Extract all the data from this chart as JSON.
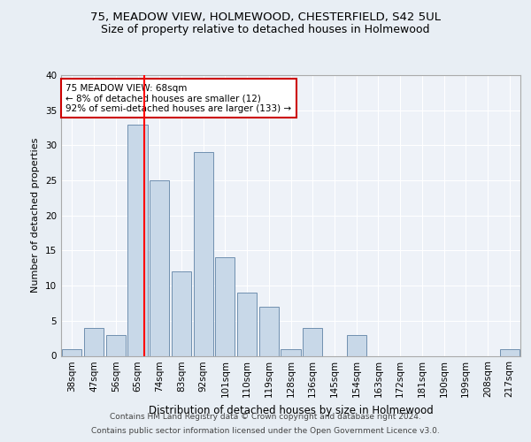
{
  "title_line1": "75, MEADOW VIEW, HOLMEWOOD, CHESTERFIELD, S42 5UL",
  "title_line2": "Size of property relative to detached houses in Holmewood",
  "xlabel": "Distribution of detached houses by size in Holmewood",
  "ylabel": "Number of detached properties",
  "categories": [
    "38sqm",
    "47sqm",
    "56sqm",
    "65sqm",
    "74sqm",
    "83sqm",
    "92sqm",
    "101sqm",
    "110sqm",
    "119sqm",
    "128sqm",
    "136sqm",
    "145sqm",
    "154sqm",
    "163sqm",
    "172sqm",
    "181sqm",
    "190sqm",
    "199sqm",
    "208sqm",
    "217sqm"
  ],
  "values": [
    1,
    4,
    3,
    33,
    25,
    12,
    29,
    14,
    9,
    7,
    1,
    4,
    0,
    3,
    0,
    0,
    0,
    0,
    0,
    0,
    1
  ],
  "bar_color": "#c8d8e8",
  "bar_edge_color": "#7090b0",
  "annotation_line1": "75 MEADOW VIEW: 68sqm",
  "annotation_line2": "← 8% of detached houses are smaller (12)",
  "annotation_line3": "92% of semi-detached houses are larger (133) →",
  "annotation_box_color": "#ffffff",
  "annotation_box_edge": "#cc0000",
  "ylim": [
    0,
    40
  ],
  "yticks": [
    0,
    5,
    10,
    15,
    20,
    25,
    30,
    35,
    40
  ],
  "footnote1": "Contains HM Land Registry data © Crown copyright and database right 2024.",
  "footnote2": "Contains public sector information licensed under the Open Government Licence v3.0.",
  "bg_color": "#e8eef4",
  "plot_bg_color": "#eef2f8",
  "red_line_x": 3.3,
  "title_fontsize": 9.5,
  "subtitle_fontsize": 9,
  "ylabel_fontsize": 8,
  "xlabel_fontsize": 8.5,
  "tick_fontsize": 7.5,
  "annot_fontsize": 7.5,
  "footnote_fontsize": 6.5
}
